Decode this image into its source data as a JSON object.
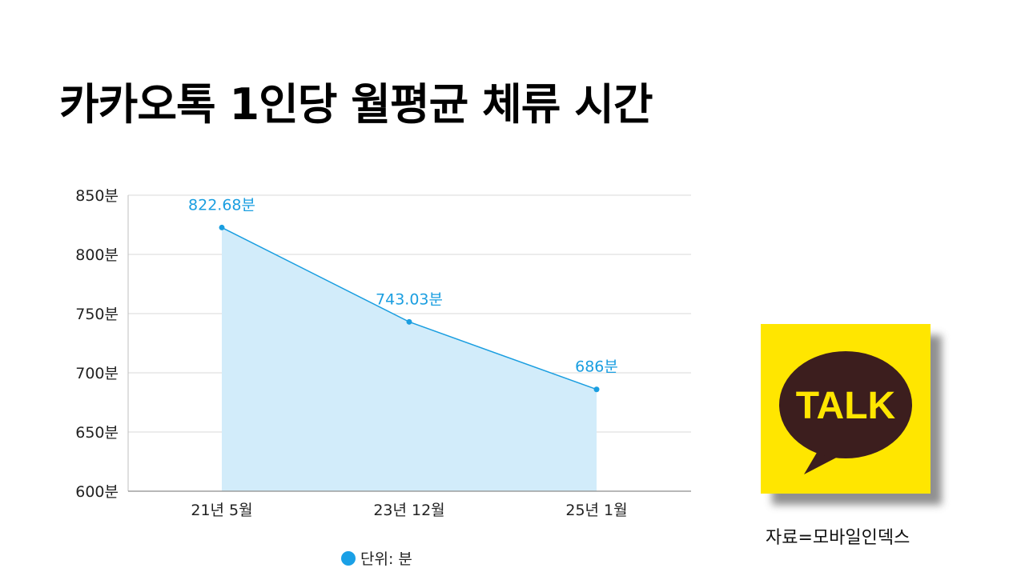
{
  "title": "카카오톡 1인당 월평균 체류 시간",
  "chart_data": {
    "type": "area",
    "categories": [
      "21년 5월",
      "23년 12월",
      "25년 1월"
    ],
    "values": [
      822.68,
      743.03,
      686
    ],
    "data_labels": [
      "822.68분",
      "743.03분",
      "686분"
    ],
    "y_ticks": [
      600,
      650,
      700,
      750,
      800,
      850
    ],
    "y_tick_labels": [
      "600분",
      "650분",
      "700분",
      "750분",
      "800분",
      "850분"
    ],
    "ylim": [
      600,
      850
    ],
    "grid": true,
    "legend_placement": "bottom",
    "colors": {
      "line": "#1a9ee0",
      "fill": "#d2ecfa",
      "label": "#1a9ee0",
      "grid": "#d9d9d9"
    }
  },
  "legend": {
    "label": "단위: 분",
    "color": "#1aa0e6"
  },
  "logo": {
    "text": "TALK",
    "icon": "kakaotalk-logo-icon",
    "bg": "#ffe600",
    "bubble": "#3c1e1e"
  },
  "source": "자료=모바일인덱스"
}
